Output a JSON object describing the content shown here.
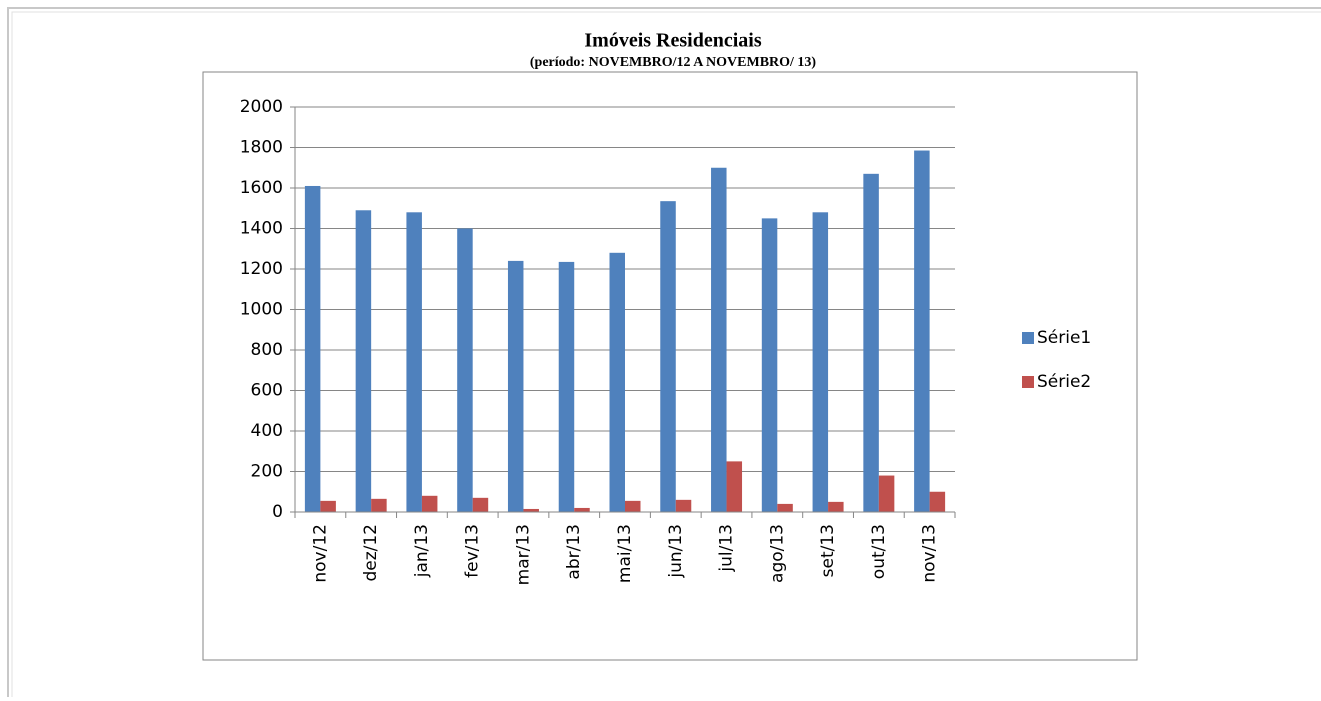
{
  "chart_data": {
    "type": "bar",
    "title": "Imóveis Residenciais",
    "subtitle": "(período:  NOVEMBRO/12 A NOVEMBRO/ 13)",
    "categories": [
      "nov/12",
      "dez/12",
      "jan/13",
      "fev/13",
      "mar/13",
      "abr/13",
      "mai/13",
      "jun/13",
      "jul/13",
      "ago/13",
      "set/13",
      "out/13",
      "nov/13"
    ],
    "series": [
      {
        "name": "Série1",
        "color": "#4f81bd",
        "values": [
          1610,
          1490,
          1480,
          1400,
          1240,
          1235,
          1280,
          1535,
          1700,
          1450,
          1480,
          1670,
          1785
        ]
      },
      {
        "name": "Série2",
        "color": "#c0504d",
        "values": [
          55,
          65,
          80,
          70,
          15,
          20,
          55,
          60,
          250,
          40,
          50,
          180,
          100
        ]
      }
    ],
    "ylim": [
      0,
      2000
    ],
    "yticks": [
      0,
      200,
      400,
      600,
      800,
      1000,
      1200,
      1400,
      1600,
      1800,
      2000
    ],
    "grid": true,
    "legend": "right"
  }
}
